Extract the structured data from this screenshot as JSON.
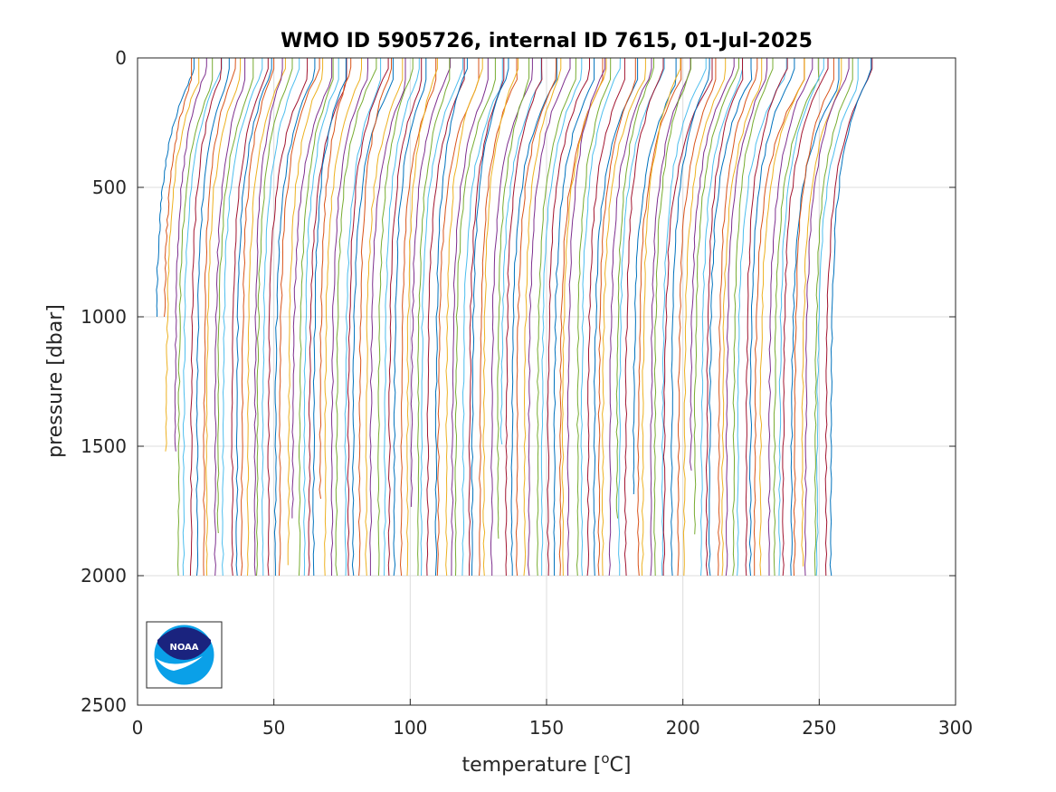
{
  "chart_data": {
    "type": "line",
    "title": "WMO ID 5905726, internal ID 7615, 01-Jul-2025",
    "xlabel": "temperature [",
    "xlabel_unit_sup": "o",
    "xlabel_unit": "C]",
    "ylabel": "pressure [dbar]",
    "xlim": [
      0,
      300
    ],
    "ylim": [
      0,
      2500
    ],
    "y_reversed": true,
    "grid": true,
    "x_ticks": [
      "0",
      "50",
      "100",
      "150",
      "200",
      "250",
      "300"
    ],
    "y_ticks": [
      "0",
      "500",
      "1000",
      "1500",
      "2000",
      "2500"
    ],
    "series_description": "Many stacked temperature profiles, each offset along x; profiles start near x=6 and extend to about x=270 at the surface, spanning pressure 0-2000 dbar",
    "profile_count": 120,
    "first_profile_surface_temp": 19,
    "last_profile_surface_temp": 270,
    "first_profile_deep_temp": 7,
    "last_profile_deep_temp": 254,
    "max_pressure": 2000,
    "colors": [
      "#0072BD",
      "#D95319",
      "#EDB120",
      "#7E2F8E",
      "#77AC30",
      "#4DBEEE",
      "#A2142F"
    ]
  },
  "logo": {
    "name": "NOAA",
    "text": "NOAA",
    "colors": {
      "dark": "#1a237e",
      "light": "#0aa0e8"
    }
  }
}
